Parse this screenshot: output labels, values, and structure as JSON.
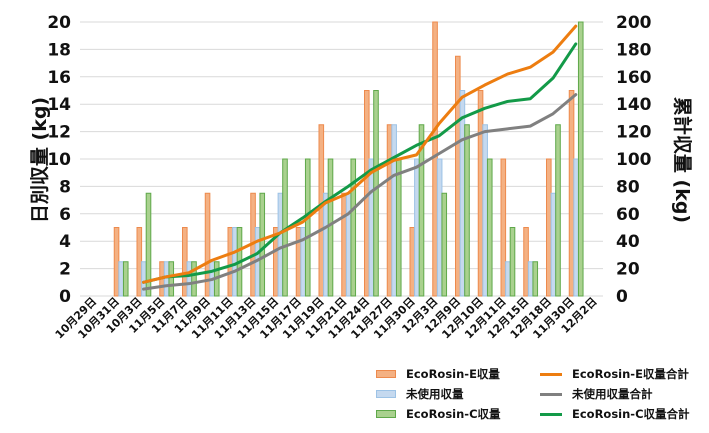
{
  "chart_data": {
    "type": "bar",
    "title": "",
    "xlabel": "",
    "ylabel": "日別収量 (kg)",
    "y2label": "累計収量 (kg)",
    "ylim": [
      0,
      20
    ],
    "y2lim": [
      0,
      200
    ],
    "yticks": [
      0,
      2,
      4,
      6,
      8,
      10,
      12,
      14,
      16,
      18,
      20
    ],
    "y2ticks": [
      0,
      20,
      40,
      60,
      80,
      100,
      120,
      140,
      160,
      180,
      200
    ],
    "grid": true,
    "legend_position": "bottom-right",
    "categories": [
      "10月29日",
      "10月31日",
      "10月3日",
      "11月5日",
      "11月7日",
      "11月9日",
      "11月11日",
      "11月13日",
      "11月15日",
      "11月17日",
      "11月19日",
      "11月21日",
      "11月24日",
      "11月27日",
      "11月30日",
      "12月3日",
      "12月9日",
      "12月10日",
      "12月11日",
      "12月15日",
      "12月18日",
      "11月30日",
      "12月2日"
    ],
    "series": [
      {
        "name": "EcoRosin-E収量",
        "type": "bar",
        "axis": "left",
        "color": "#f4b183",
        "border": "#ed8a4d",
        "values": [
          null,
          5,
          5,
          2.5,
          5,
          7.5,
          5,
          7.5,
          5,
          5,
          12.5,
          7.5,
          15,
          12.5,
          5,
          20,
          17.5,
          15,
          10,
          5,
          10,
          15,
          null
        ]
      },
      {
        "name": "未使用収量",
        "type": "bar",
        "axis": "left",
        "color": "#c5d9ef",
        "border": "#9dc3e6",
        "values": [
          null,
          2.5,
          2.5,
          2.5,
          2.5,
          2.5,
          5,
          5,
          7.5,
          5,
          7.5,
          7.5,
          10,
          12.5,
          10,
          10,
          15,
          12.5,
          2.5,
          2.5,
          7.5,
          10,
          null
        ]
      },
      {
        "name": "EcoRosin-C収量",
        "type": "bar",
        "axis": "left",
        "color": "#a9d18e",
        "border": "#5fa84a",
        "values": [
          null,
          2.5,
          7.5,
          2.5,
          2.5,
          2.5,
          5,
          7.5,
          10,
          10,
          10,
          10,
          15,
          10,
          12.5,
          7.5,
          12.5,
          10,
          5,
          2.5,
          12.5,
          20,
          null
        ]
      },
      {
        "name": "EcoRosin-E収量合計",
        "type": "line",
        "axis": "right",
        "color": "#ed7d10",
        "values": [
          null,
          null,
          10,
          14,
          17,
          26,
          32,
          40,
          46,
          54,
          68,
          75,
          90,
          99,
          103,
          126,
          145,
          154,
          162,
          167,
          178,
          197,
          null
        ]
      },
      {
        "name": "未使用収量合計",
        "type": "line",
        "axis": "right",
        "color": "#808080",
        "values": [
          null,
          null,
          5,
          7.5,
          9,
          12,
          18,
          26,
          35,
          41,
          50,
          60,
          76,
          88,
          94,
          104,
          114,
          120,
          122,
          124,
          133,
          147,
          null
        ]
      },
      {
        "name": "EcoRosin-C収量合計",
        "type": "line",
        "axis": "right",
        "color": "#139a48",
        "values": [
          null,
          null,
          10,
          14,
          15,
          18,
          23,
          31,
          46,
          57,
          69,
          80,
          92,
          101,
          110,
          117,
          130,
          137,
          142,
          144,
          159,
          184,
          null
        ]
      }
    ]
  },
  "legend": {
    "items": [
      {
        "label": "EcoRosin-E収量",
        "kind": "bar",
        "color": "#f4b183",
        "border": "#ed8a4d"
      },
      {
        "label": "EcoRosin-E収量合計",
        "kind": "line",
        "color": "#ed7d10"
      },
      {
        "label": "未使用収量",
        "kind": "bar",
        "color": "#c5d9ef",
        "border": "#9dc3e6"
      },
      {
        "label": "未使用収量合計",
        "kind": "line",
        "color": "#808080"
      },
      {
        "label": "EcoRosin-C収量",
        "kind": "bar",
        "color": "#a9d18e",
        "border": "#5fa84a"
      },
      {
        "label": "EcoRosin-C収量合計",
        "kind": "line",
        "color": "#139a48"
      }
    ]
  }
}
